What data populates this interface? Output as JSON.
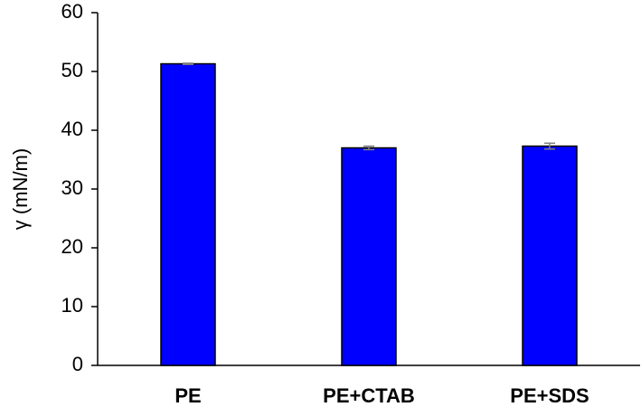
{
  "chart_data": {
    "type": "bar",
    "y_label": "γ (mN/m)",
    "categories": [
      "PE",
      "PE+CTAB",
      "PE+SDS"
    ],
    "values": [
      51.3,
      37.0,
      37.3
    ],
    "errors": [
      0.1,
      0.3,
      0.5
    ],
    "color": "#0000ff",
    "error_color": "#7f7f7f",
    "ylim": [
      0,
      60
    ],
    "yticks": [
      0,
      10,
      20,
      30,
      40,
      50,
      60
    ],
    "grid": false
  }
}
